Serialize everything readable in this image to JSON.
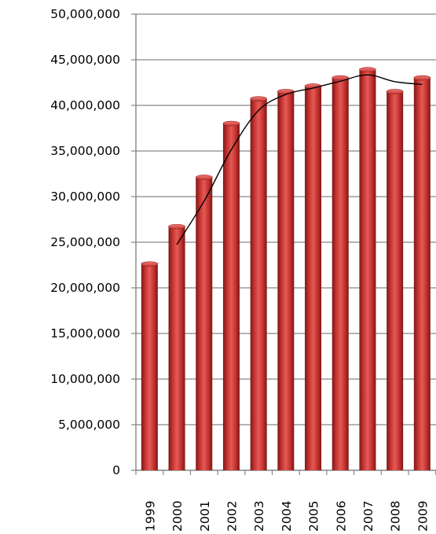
{
  "chart_data": {
    "type": "bar",
    "title": "",
    "xlabel": "",
    "ylabel": "",
    "categories": [
      "1999",
      "2000",
      "2001",
      "2002",
      "2003",
      "2004",
      "2005",
      "2006",
      "2007",
      "2008",
      "2009"
    ],
    "series": [
      {
        "type": "bar",
        "values": [
          22700000,
          26800000,
          32200000,
          38100000,
          40800000,
          41600000,
          42200000,
          43100000,
          44000000,
          41600000,
          43100000
        ]
      },
      {
        "type": "line",
        "x": [
          "2000",
          "2001",
          "2002",
          "2003",
          "2004",
          "2005",
          "2006",
          "2007",
          "2008",
          "2009"
        ],
        "values": [
          24750000,
          29500000,
          35150000,
          39450000,
          41200000,
          41900000,
          42650000,
          43350000,
          42600000,
          42300000
        ]
      }
    ],
    "ylim": [
      0,
      50000000
    ],
    "yticks": [
      "0",
      "5,000,000",
      "10,000,000",
      "15,000,000",
      "20,000,000",
      "25,000,000",
      "30,000,000",
      "35,000,000",
      "40,000,000",
      "45,000,000",
      "50,000,000"
    ],
    "grid": true,
    "legend": "none",
    "colors": {
      "bar": "#c0302e",
      "bar_highlight": "#e55a55",
      "bar_shadow": "#7d1715",
      "line": "#000000",
      "grid": "#868686"
    }
  }
}
